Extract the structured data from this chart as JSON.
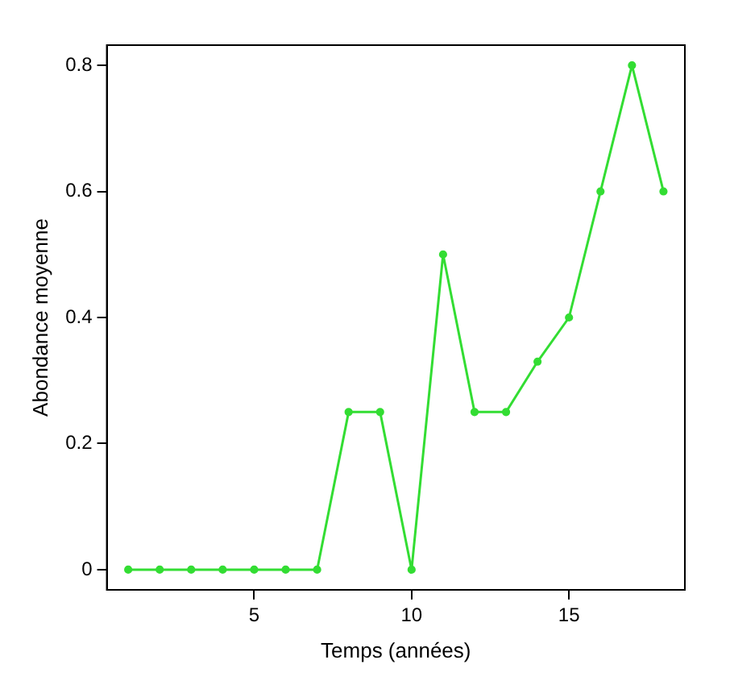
{
  "chart_data": {
    "type": "line",
    "xlabel": "Temps (années)",
    "ylabel": "Abondance moyenne",
    "x": [
      1,
      2,
      3,
      4,
      5,
      6,
      7,
      8,
      9,
      10,
      11,
      12,
      13,
      14,
      15,
      16,
      17,
      18
    ],
    "series": [
      {
        "color": "#33dd33",
        "values": [
          0,
          0,
          0,
          0,
          0,
          0,
          0,
          0.25,
          0.25,
          0,
          0.5,
          0.25,
          0.25,
          0.33,
          0.4,
          0.6,
          0.8,
          0.6
        ]
      }
    ],
    "xlim": [
      0.32,
      18.68
    ],
    "xticks": [
      5,
      10,
      15
    ],
    "ylim": [
      -0.032,
      0.832
    ],
    "yticks": [
      0,
      0.2,
      0.4,
      0.6,
      0.8
    ],
    "grid": false,
    "legend": false,
    "marker": "circle",
    "line_style": "solid"
  }
}
